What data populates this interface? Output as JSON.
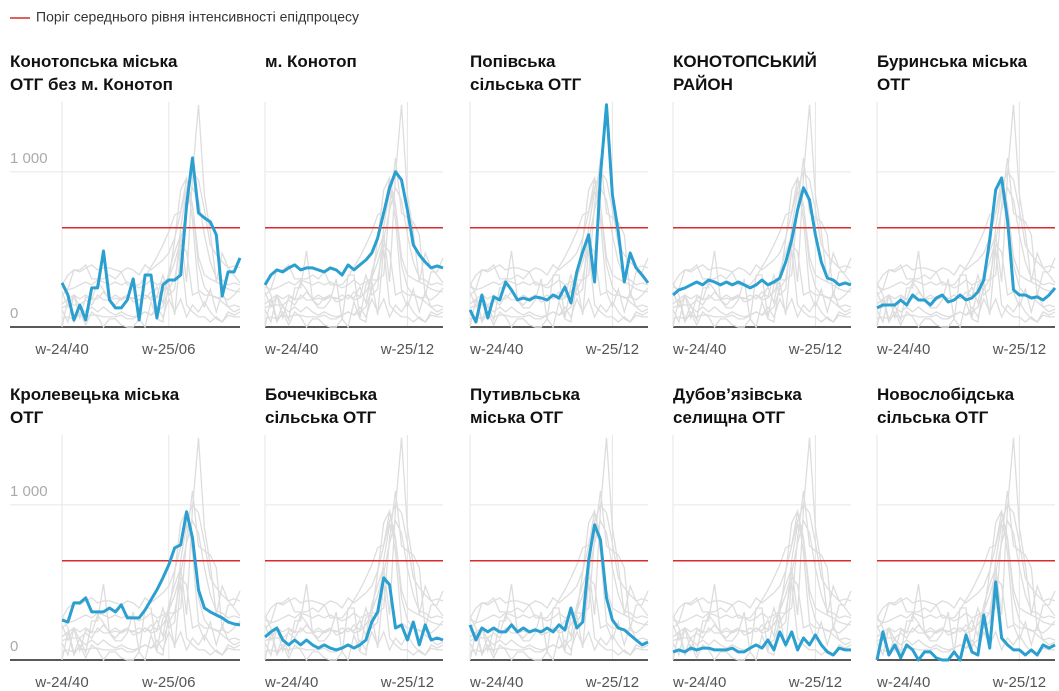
{
  "chart_data": {
    "type": "line",
    "legend_label": "Поріг середнього рівня інтенсивності епідпроцесу",
    "threshold": 640,
    "threshold_color": "#d62c2c",
    "highlight_color": "#2a9fd0",
    "background_color": "#dddddd",
    "ylim": [
      0,
      1450
    ],
    "yticks": [
      0,
      {
        "value": 1000,
        "label": "1 000"
      }
    ],
    "xlim": [
      0,
      30
    ],
    "x": [
      0,
      1,
      2,
      3,
      4,
      5,
      6,
      7,
      8,
      9,
      10,
      11,
      12,
      13,
      14,
      15,
      16,
      17,
      18,
      19,
      20,
      21,
      22,
      23,
      24,
      25,
      26,
      27,
      28,
      29,
      30
    ],
    "series": [
      {
        "name": "Конотопська міська\nОТГ без м. Конотоп",
        "xticks": [
          {
            "value": 0,
            "label": "w-24/40"
          },
          {
            "value": 18,
            "label": "w-25/06"
          }
        ],
        "values": [
          284,
          206,
          45,
          142,
          45,
          252,
          252,
          490,
          174,
          123,
          123,
          174,
          310,
          45,
          335,
          335,
          58,
          271,
          303,
          303,
          335,
          787,
          1090,
          735,
          703,
          677,
          594,
          200,
          355,
          355,
          445
        ]
      },
      {
        "name": "м. Конотоп",
        "xticks": [
          {
            "value": 0,
            "label": "w-24/40"
          },
          {
            "value": 24,
            "label": "w-25/12"
          }
        ],
        "values": [
          271,
          335,
          368,
          355,
          381,
          400,
          368,
          381,
          381,
          368,
          355,
          381,
          368,
          335,
          400,
          368,
          400,
          432,
          477,
          574,
          735,
          897,
          1000,
          948,
          755,
          529,
          465,
          419,
          381,
          394,
          381
        ]
      },
      {
        "name": "Попівська\nсільська ОТГ",
        "xticks": [
          {
            "value": 0,
            "label": "w-24/40"
          },
          {
            "value": 24,
            "label": "w-25/12"
          }
        ],
        "values": [
          110,
          32,
          206,
          58,
          194,
          174,
          290,
          239,
          174,
          187,
          174,
          194,
          187,
          174,
          206,
          187,
          258,
          155,
          355,
          484,
          594,
          290,
          981,
          1432,
          852,
          613,
          290,
          477,
          381,
          335,
          284
        ]
      },
      {
        "name": "КОНОТОПСЬКИЙ\nРАЙОН",
        "xticks": [
          {
            "value": 0,
            "label": "w-24/40"
          },
          {
            "value": 24,
            "label": "w-25/12"
          }
        ],
        "values": [
          206,
          239,
          252,
          271,
          290,
          271,
          303,
          290,
          271,
          290,
          271,
          290,
          271,
          252,
          271,
          303,
          271,
          290,
          316,
          419,
          561,
          755,
          897,
          819,
          594,
          419,
          316,
          303,
          271,
          284,
          271
        ]
      },
      {
        "name": "Буринська міська\nОТГ",
        "xticks": [
          {
            "value": 0,
            "label": "w-24/40"
          },
          {
            "value": 24,
            "label": "w-25/12"
          }
        ],
        "values": [
          123,
          142,
          142,
          142,
          174,
          142,
          206,
          174,
          174,
          142,
          187,
          206,
          161,
          174,
          206,
          174,
          187,
          226,
          303,
          561,
          884,
          961,
          690,
          239,
          206,
          206,
          187,
          194,
          174,
          206,
          252
        ]
      },
      {
        "name": "Кролевецька міська\nОТГ",
        "xticks": [
          {
            "value": 0,
            "label": "w-24/40"
          },
          {
            "value": 18,
            "label": "w-25/06"
          }
        ],
        "values": [
          258,
          245,
          368,
          368,
          400,
          310,
          310,
          310,
          335,
          310,
          355,
          271,
          271,
          271,
          323,
          387,
          452,
          529,
          613,
          723,
          742,
          955,
          787,
          452,
          335,
          310,
          290,
          271,
          245,
          232,
          226
        ]
      },
      {
        "name": "Бочечківська\nсільська ОТГ",
        "xticks": [
          {
            "value": 0,
            "label": "w-24/40"
          },
          {
            "value": 24,
            "label": "w-25/12"
          }
        ],
        "values": [
          148,
          181,
          206,
          129,
          97,
          129,
          97,
          129,
          97,
          77,
          97,
          77,
          65,
          77,
          97,
          77,
          97,
          129,
          245,
          310,
          529,
          484,
          206,
          226,
          129,
          245,
          97,
          226,
          129,
          142,
          129
        ]
      },
      {
        "name": "Путивльська\nміська ОТГ",
        "xticks": [
          {
            "value": 0,
            "label": "w-24/40"
          },
          {
            "value": 24,
            "label": "w-25/12"
          }
        ],
        "values": [
          226,
          129,
          206,
          181,
          206,
          181,
          181,
          226,
          181,
          206,
          181,
          194,
          181,
          206,
          181,
          226,
          194,
          335,
          206,
          245,
          645,
          871,
          774,
          400,
          258,
          206,
          194,
          161,
          129,
          97,
          116
        ]
      },
      {
        "name": "Дубов’язівська\nселищна ОТГ",
        "xticks": [
          {
            "value": 0,
            "label": "w-24/40"
          },
          {
            "value": 24,
            "label": "w-25/12"
          }
        ],
        "values": [
          52,
          65,
          52,
          77,
          65,
          77,
          77,
          65,
          65,
          65,
          77,
          52,
          52,
          77,
          97,
          77,
          129,
          65,
          181,
          97,
          181,
          65,
          142,
          97,
          161,
          97,
          52,
          32,
          77,
          65,
          65
        ]
      },
      {
        "name": "Новослобідська\nсільська ОТГ",
        "xticks": [
          {
            "value": 0,
            "label": "w-24/40"
          },
          {
            "value": 24,
            "label": "w-25/12"
          }
        ],
        "values": [
          0,
          181,
          32,
          97,
          13,
          97,
          65,
          0,
          52,
          52,
          13,
          0,
          0,
          52,
          0,
          161,
          52,
          32,
          290,
          77,
          503,
          142,
          97,
          65,
          65,
          32,
          65,
          32,
          97,
          77,
          97
        ]
      }
    ]
  }
}
